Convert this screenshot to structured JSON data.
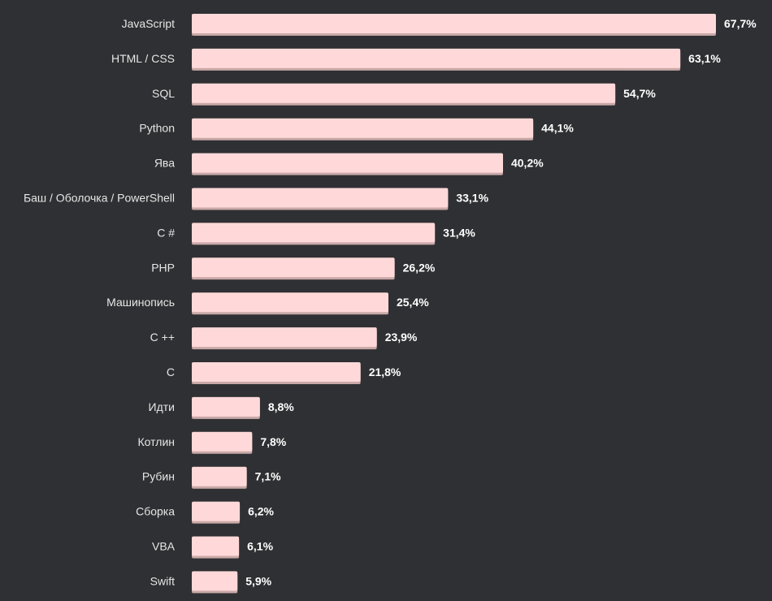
{
  "chart_data": {
    "type": "bar",
    "orientation": "horizontal",
    "title": "",
    "xlabel": "",
    "ylabel": "",
    "xlim": [
      0,
      67.7
    ],
    "grid": false,
    "legend": "none",
    "bar_color": "#ffd9d9",
    "bar_shadow_color": "#c9a8a8",
    "background_color": "#2f3033",
    "categories": [
      "JavaScript",
      "HTML / CSS",
      "SQL",
      "Python",
      "Ява",
      "Баш / Оболочка / PowerShell",
      "C #",
      "PHP",
      "Машинопись",
      "C ++",
      "C",
      "Идти",
      "Котлин",
      "Рубин",
      "Сборка",
      "VBA",
      "Swift"
    ],
    "values": [
      67.7,
      63.1,
      54.7,
      44.1,
      40.2,
      33.1,
      31.4,
      26.2,
      25.4,
      23.9,
      21.8,
      8.8,
      7.8,
      7.1,
      6.2,
      6.1,
      5.9
    ],
    "value_labels": [
      "67,7%",
      "63,1%",
      "54,7%",
      "44,1%",
      "40,2%",
      "33,1%",
      "31,4%",
      "26,2%",
      "25,4%",
      "23,9%",
      "21,8%",
      "8,8%",
      "7,8%",
      "7,1%",
      "6,2%",
      "6,1%",
      "5,9%"
    ]
  }
}
